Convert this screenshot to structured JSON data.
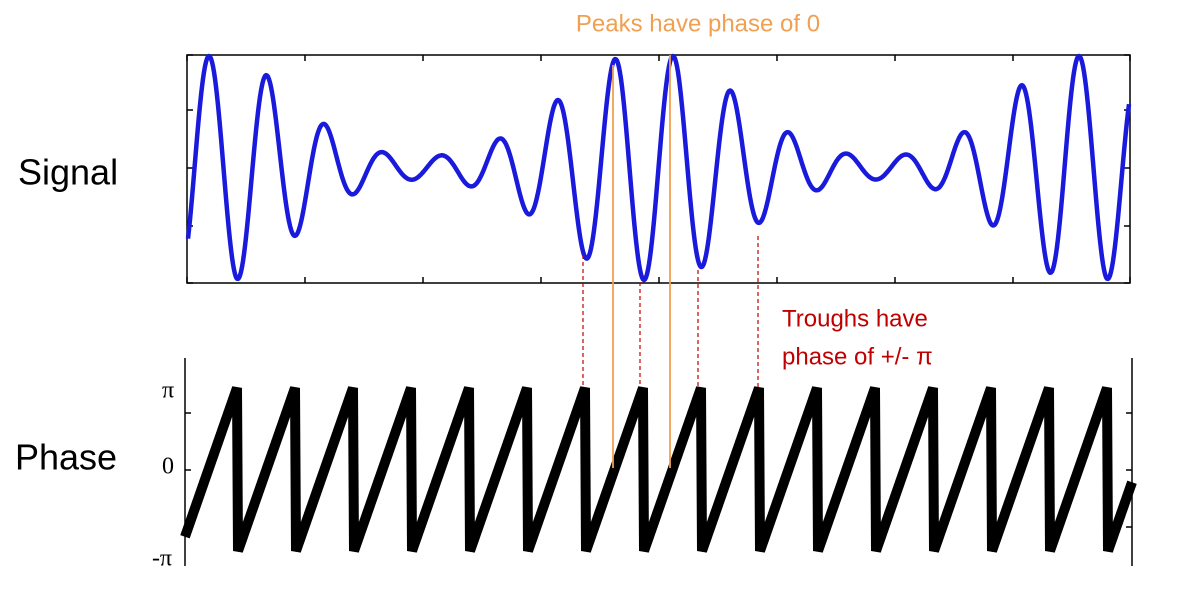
{
  "title": "Peaks have phase of 0",
  "labels": {
    "signal": "Signal",
    "phase": "Phase"
  },
  "troughs_note": [
    "Troughs have",
    "phase of +/- π"
  ],
  "phase_ticks": [
    "π",
    "0",
    "-π"
  ]
}
